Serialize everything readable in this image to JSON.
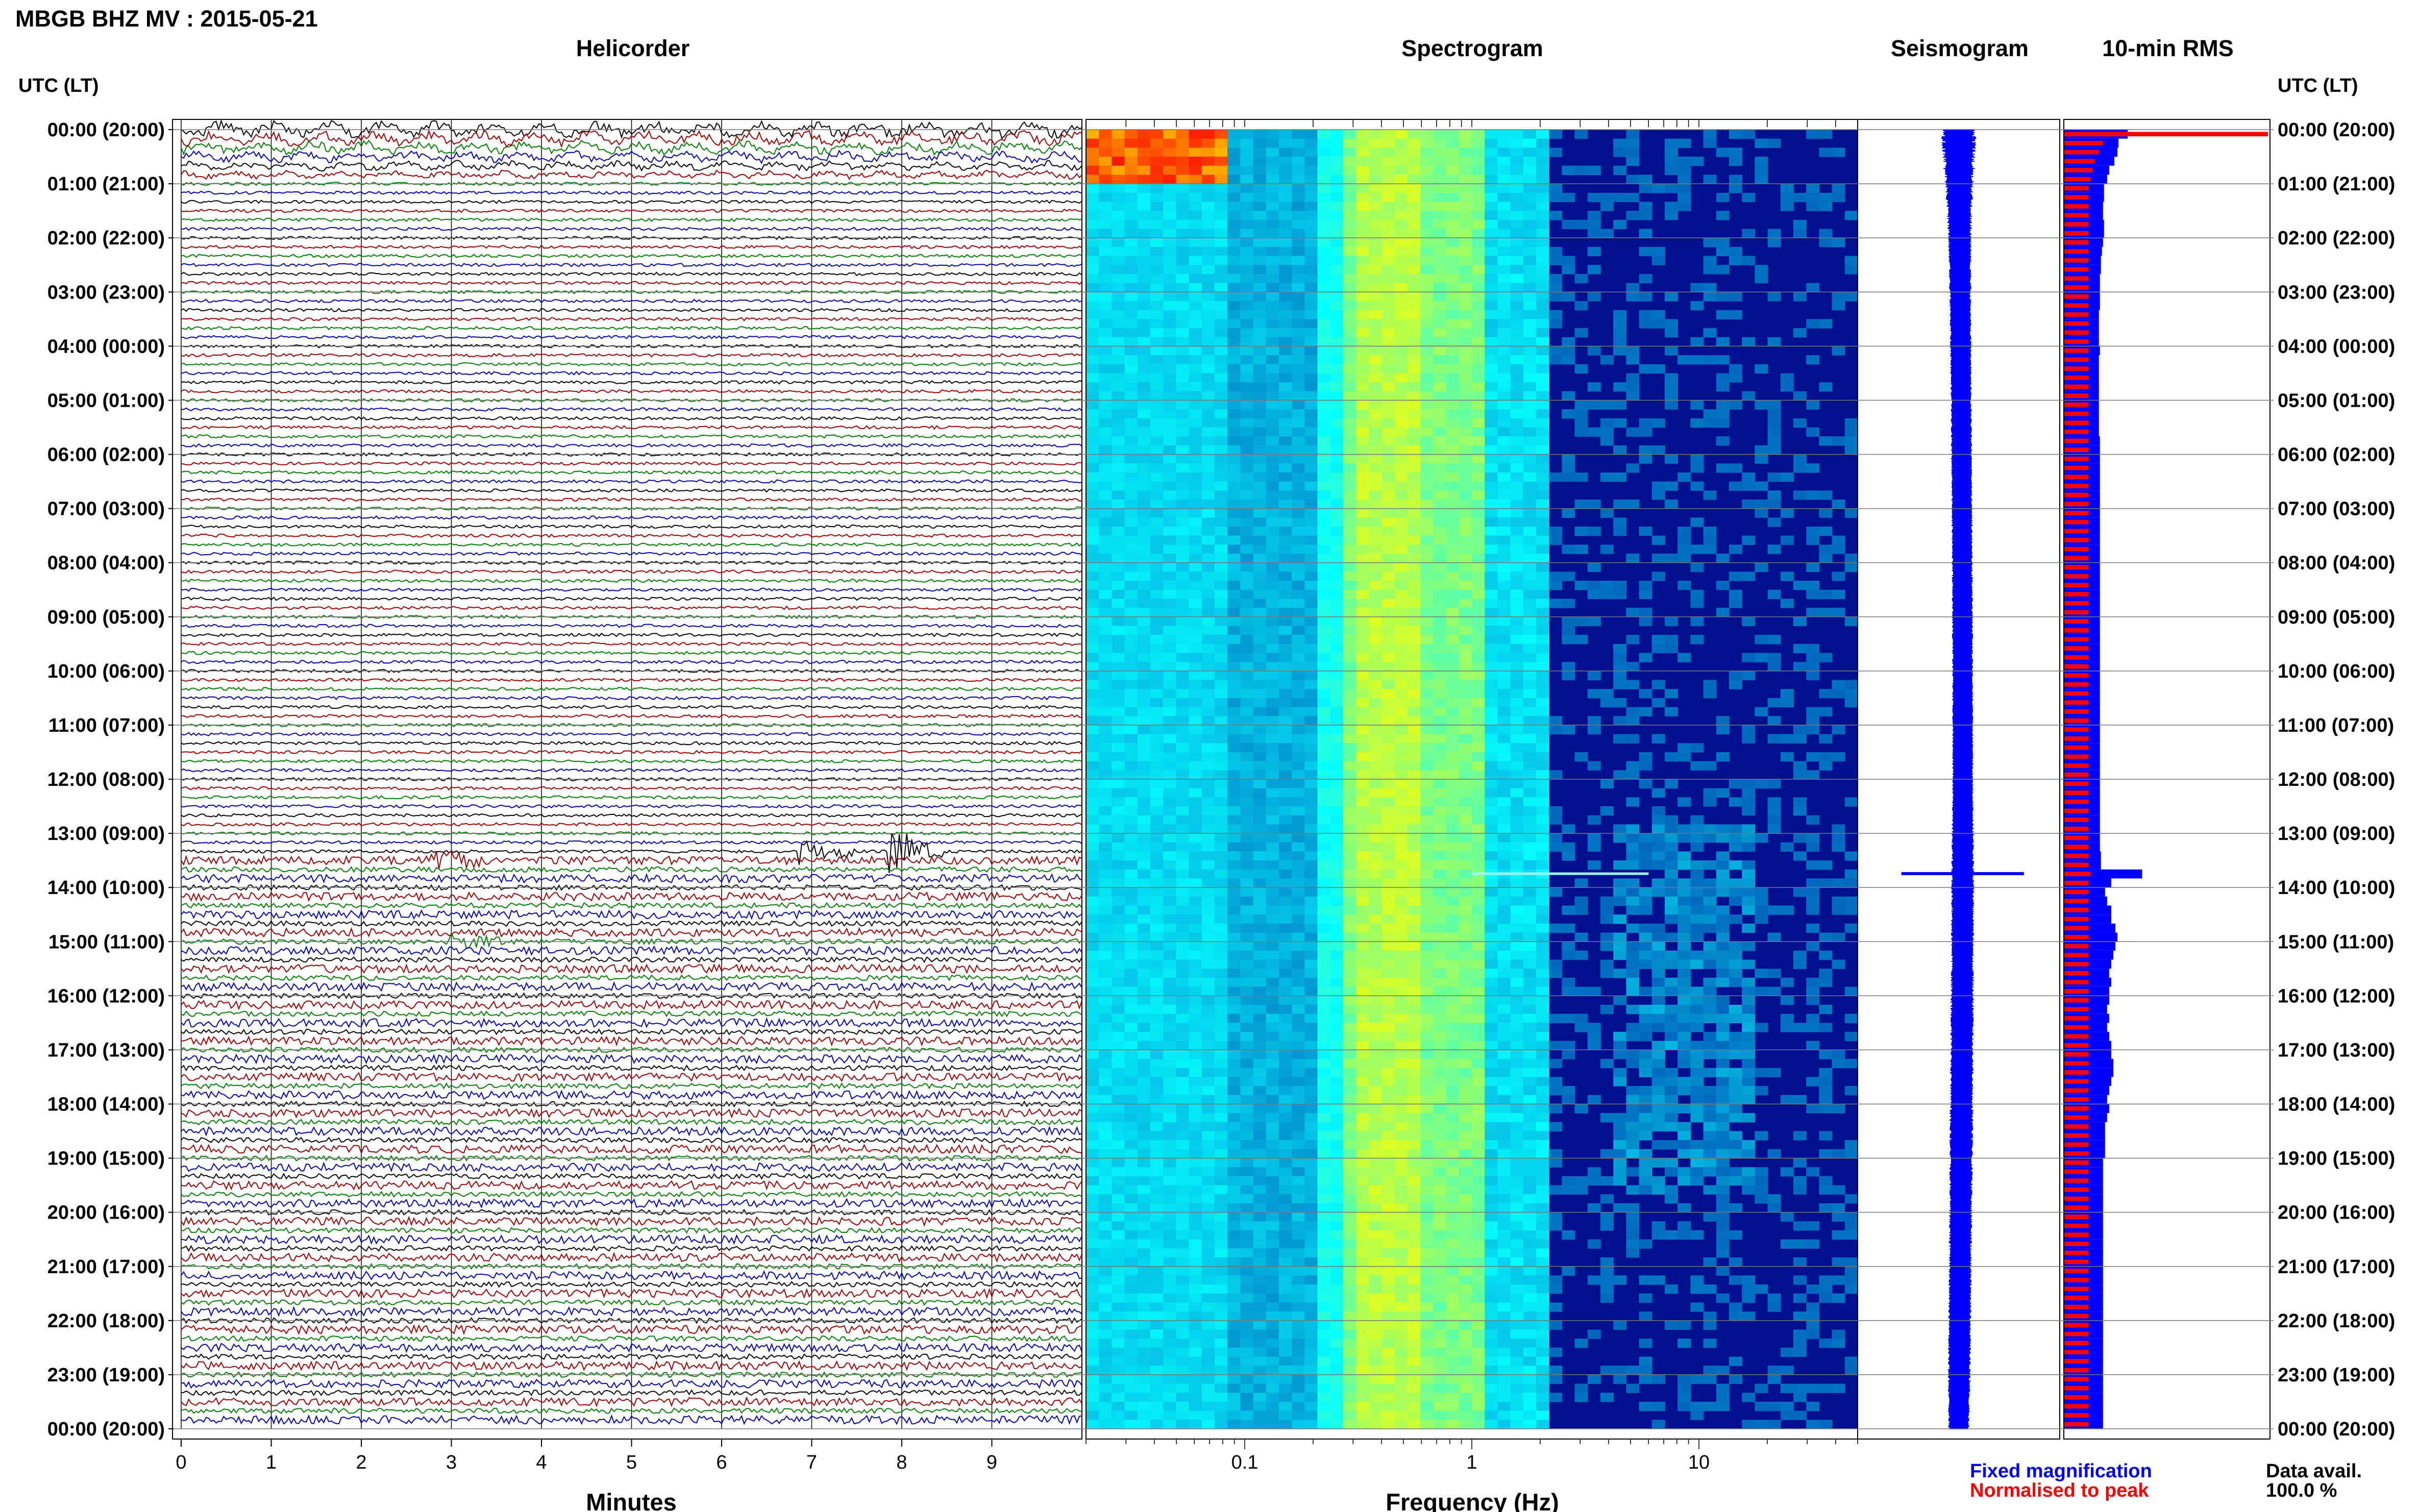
{
  "header": {
    "station_title": "MBGB BHZ MV : 2015-05-21"
  },
  "axis_time_label_left": "UTC (LT)",
  "axis_time_label_right": "UTC (LT)",
  "panels": {
    "helicorder": "Helicorder",
    "spectrogram": "Spectrogram",
    "seismogram": "Seismogram",
    "rms": "10-min RMS"
  },
  "time_ticks": [
    "00:00 (20:00)",
    "01:00 (21:00)",
    "02:00 (22:00)",
    "03:00 (23:00)",
    "04:00 (00:00)",
    "05:00 (01:00)",
    "06:00 (02:00)",
    "07:00 (03:00)",
    "08:00 (04:00)",
    "09:00 (05:00)",
    "10:00 (06:00)",
    "11:00 (07:00)",
    "12:00 (08:00)",
    "13:00 (09:00)",
    "14:00 (10:00)",
    "15:00 (11:00)",
    "16:00 (12:00)",
    "17:00 (13:00)",
    "18:00 (14:00)",
    "19:00 (15:00)",
    "20:00 (16:00)",
    "21:00 (17:00)",
    "22:00 (18:00)",
    "23:00 (19:00)",
    "00:00 (20:00)"
  ],
  "x_axes": {
    "minutes_label": "Minutes",
    "minutes_ticks": [
      "0",
      "1",
      "2",
      "3",
      "4",
      "5",
      "6",
      "7",
      "8",
      "9"
    ],
    "frequency_label": "Frequency (Hz)",
    "frequency_ticks": [
      "0.1",
      "1",
      "10"
    ]
  },
  "legend": {
    "fixed": "Fixed magnification",
    "normalised": "Normalised to peak",
    "fixed_color": "#0000ff",
    "normalised_color": "#ff0000"
  },
  "data_avail": {
    "label": "Data avail.",
    "value": "100.0 %"
  },
  "chart_data": {
    "type": "heatmap",
    "title": "MBGB BHZ MV : 2015-05-21",
    "helicorder": {
      "x_unit": "Minutes",
      "x_range": [
        0,
        10
      ],
      "lines_per_hour": 6,
      "trace_colors": [
        "#000000",
        "#a00000",
        "#008000",
        "#0000b0"
      ],
      "events": [
        {
          "hour": 13.5,
          "minute": 2.8,
          "amp": 1.2
        },
        {
          "hour": 13.33,
          "minute": 6.9,
          "amp": 2.0
        },
        {
          "hour": 13.33,
          "minute": 7.9,
          "amp": 2.6
        },
        {
          "hour": 15.0,
          "minute": 3.0,
          "amp": 1.0
        }
      ]
    },
    "spectrogram": {
      "x_scale": "log",
      "x_range": [
        0.02,
        50
      ],
      "xlabel": "Frequency (Hz)",
      "colormap": "jet",
      "peak_band_hz": [
        0.2,
        0.8
      ]
    },
    "seismogram": {
      "amplitude_envelope": [
        1.0,
        0.65,
        0.4,
        0.35,
        0.32,
        0.3,
        0.3,
        0.3,
        0.3,
        0.3,
        0.3,
        0.3,
        0.3,
        0.35,
        0.4,
        0.38,
        0.4,
        0.4,
        0.42,
        0.42,
        0.4,
        0.38,
        0.4,
        0.38,
        0.3
      ],
      "spike_hour": 13.75
    },
    "rms_10min": {
      "fixed_magnification": [
        3.1,
        2.65,
        2.6,
        2.45,
        2.2,
        2.1,
        1.95,
        1.95,
        1.9,
        1.9,
        1.95,
        1.95,
        1.9,
        1.85,
        1.8,
        1.8,
        1.75,
        1.75,
        1.75,
        1.75,
        1.7,
        1.7,
        1.7,
        1.7,
        1.75,
        1.7,
        1.7,
        1.7,
        1.7,
        1.7,
        1.7,
        1.7,
        1.7,
        1.7,
        1.75,
        1.75,
        1.75,
        1.75,
        1.75,
        1.75,
        1.75,
        1.75,
        1.75,
        1.75,
        1.75,
        1.75,
        1.75,
        1.75,
        1.75,
        1.75,
        1.75,
        1.75,
        1.75,
        1.75,
        1.75,
        1.75,
        1.75,
        1.75,
        1.75,
        1.75,
        1.75,
        1.75,
        1.75,
        1.75,
        1.75,
        1.75,
        1.75,
        1.75,
        1.75,
        1.75,
        1.75,
        1.75,
        1.75,
        1.75,
        1.75,
        1.75,
        1.75,
        1.75,
        1.75,
        1.75,
        1.8,
        1.8,
        3.8,
        2.3,
        2.0,
        2.1,
        2.3,
        2.3,
        2.5,
        2.6,
        2.5,
        2.4,
        2.3,
        2.2,
        2.3,
        2.2,
        2.2,
        2.1,
        2.2,
        2.1,
        2.2,
        2.3,
        2.3,
        2.4,
        2.4,
        2.3,
        2.2,
        2.1,
        2.2,
        2.1,
        2.0,
        2.0,
        2.0,
        2.0,
        1.9,
        1.9,
        1.9,
        1.9,
        1.9,
        1.9,
        1.9,
        1.9,
        1.9,
        1.9,
        1.9,
        1.9,
        1.9,
        1.9,
        1.9,
        1.9,
        1.9,
        1.9,
        1.9,
        1.9,
        1.9,
        1.9,
        1.9,
        1.9,
        1.9,
        1.9,
        1.9,
        1.9,
        1.9,
        1.9
      ],
      "normalised_to_peak": [
        9.9,
        1.9,
        1.7,
        1.5,
        1.4,
        1.3,
        1.2,
        1.2,
        1.2,
        1.2,
        1.2,
        1.2,
        1.2,
        1.2,
        1.2,
        1.2,
        1.2,
        1.2,
        1.2,
        1.2,
        1.2,
        1.2,
        1.2,
        1.2,
        1.2,
        1.2,
        1.2,
        1.2,
        1.2,
        1.2,
        1.2,
        1.2,
        1.2,
        1.2,
        1.2,
        1.2,
        1.2,
        1.2,
        1.2,
        1.2,
        1.2,
        1.2,
        1.2,
        1.2,
        1.2,
        1.2,
        1.2,
        1.2,
        1.2,
        1.2,
        1.2,
        1.2,
        1.2,
        1.2,
        1.2,
        1.2,
        1.2,
        1.2,
        1.2,
        1.2,
        1.2,
        1.2,
        1.2,
        1.2,
        1.2,
        1.2,
        1.2,
        1.2,
        1.2,
        1.2,
        1.2,
        1.2,
        1.2,
        1.2,
        1.2,
        1.2,
        1.2,
        1.2,
        1.2,
        1.2,
        1.2,
        1.2,
        1.3,
        1.2,
        1.2,
        1.2,
        1.2,
        1.2,
        1.2,
        1.2,
        1.2,
        1.2,
        1.2,
        1.2,
        1.2,
        1.2,
        1.2,
        1.2,
        1.2,
        1.2,
        1.2,
        1.2,
        1.2,
        1.2,
        1.2,
        1.2,
        1.2,
        1.2,
        1.2,
        1.2,
        1.2,
        1.2,
        1.2,
        1.2,
        1.2,
        1.2,
        1.2,
        1.2,
        1.2,
        1.2,
        1.2,
        1.2,
        1.2,
        1.2,
        1.2,
        1.2,
        1.2,
        1.2,
        1.2,
        1.2,
        1.2,
        1.2,
        1.2,
        1.2,
        1.2,
        1.2,
        1.2,
        1.2,
        1.2,
        1.2,
        1.2,
        1.2,
        1.2,
        1.2
      ],
      "x_range": [
        0,
        10
      ]
    }
  }
}
